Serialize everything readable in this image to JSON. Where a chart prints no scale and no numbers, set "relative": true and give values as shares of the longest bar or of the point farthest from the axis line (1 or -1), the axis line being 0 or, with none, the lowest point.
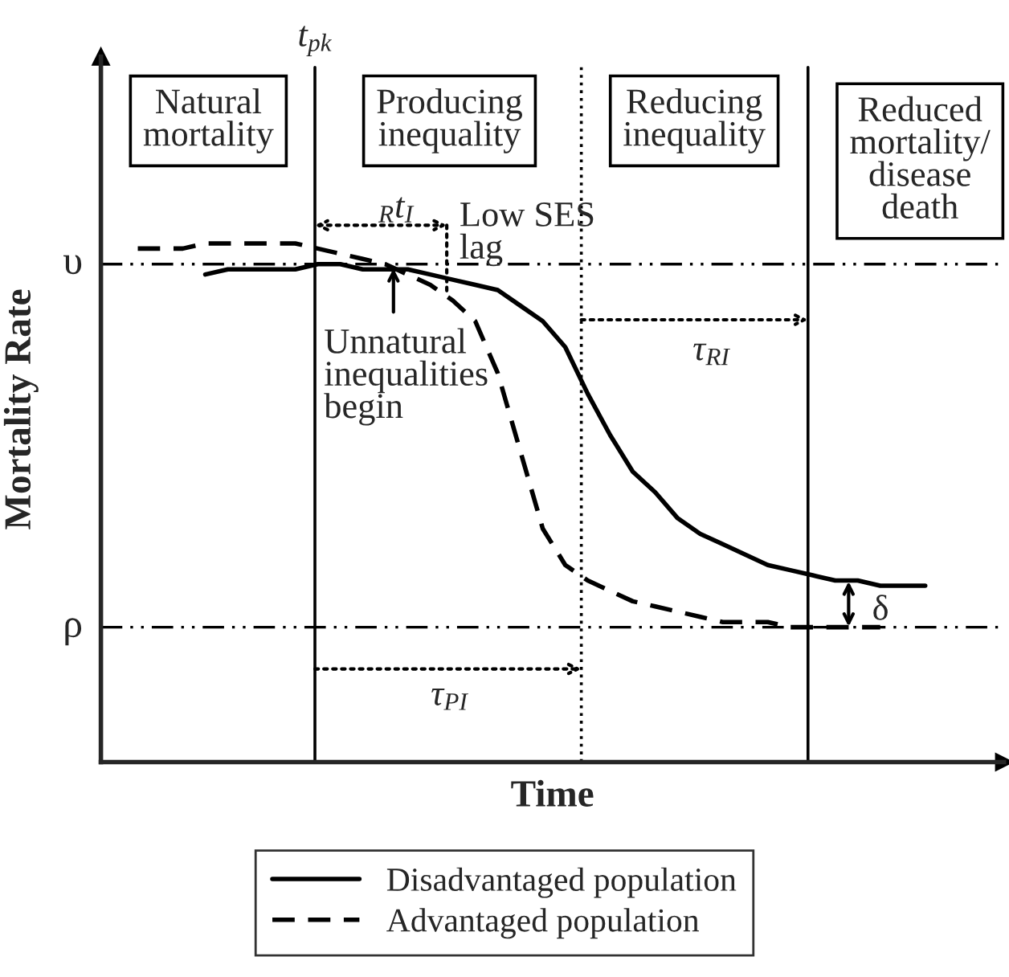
{
  "chart_data": {
    "type": "line",
    "relative": true,
    "xlabel": "Time",
    "ylabel": "Mortality Rate",
    "legend": "bottom",
    "marker": "none",
    "categories": [
      null,
      null,
      null,
      null,
      null,
      null,
      null,
      null,
      null,
      null,
      null,
      null,
      null,
      null,
      null,
      null,
      null,
      null,
      null,
      null,
      null,
      null,
      null,
      null,
      null,
      null,
      null,
      null,
      null,
      null,
      null,
      null,
      null,
      null,
      null,
      null,
      null
    ],
    "series": [
      {
        "name": "Disadvantaged population",
        "color": "#000000",
        "line_style": "solid",
        "values": [
          null,
          null,
          null,
          null,
          0.94,
          0.95,
          0.95,
          0.95,
          0.95,
          0.96,
          0.96,
          0.95,
          0.95,
          0.95,
          0.94,
          0.93,
          0.92,
          0.91,
          0.88,
          0.85,
          0.8,
          0.71,
          0.63,
          0.56,
          0.52,
          0.47,
          0.44,
          0.42,
          0.4,
          0.38,
          0.37,
          0.36,
          0.35,
          0.35,
          0.34,
          0.34,
          0.34
        ]
      },
      {
        "name": "Advantaged population",
        "color": "#000000",
        "line_style": "dashed",
        "values": [
          null,
          0.99,
          0.99,
          0.99,
          1.0,
          1.0,
          1.0,
          1.0,
          1.0,
          0.99,
          0.98,
          0.97,
          0.96,
          0.94,
          0.92,
          0.89,
          0.85,
          0.75,
          0.6,
          0.45,
          0.38,
          0.35,
          0.33,
          0.31,
          0.3,
          0.29,
          0.28,
          0.27,
          0.27,
          0.27,
          0.26,
          0.26,
          0.26,
          0.26,
          0.26,
          null,
          null
        ]
      }
    ],
    "ref_lines": [
      {
        "axis": "y",
        "value": 0.96,
        "label": "υ",
        "line_style": "dashdot"
      },
      {
        "axis": "y",
        "value": 0.26,
        "label": "ρ",
        "line_style": "dashdot"
      }
    ],
    "annotations": [
      "t$_{pk}$",
      "Natural\nmortality",
      "Producing\ninequality",
      "Reducing\ninequality",
      "Reduced\nmortality/\ndisease\ndeath",
      "$_{R}$t$_{I}$",
      "Low SES\nlag",
      "Unnatural\ninequalities\nbegin",
      "τ$_{RI}$",
      "τ$_{PI}$",
      "δ"
    ]
  }
}
